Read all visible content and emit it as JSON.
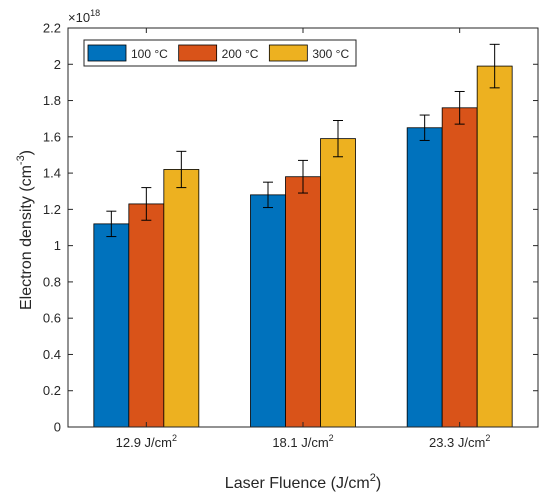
{
  "chart_data": {
    "type": "bar",
    "xlabel": "Laser Fluence (J/cm",
    "xlabel_sup": "2",
    "xlabel_close": ")",
    "ylabel": "Electron density (cm",
    "ylabel_sup": "-3",
    "ylabel_close": ")",
    "y_multiplier_base": "×10",
    "y_multiplier_exp": "18",
    "ylim": [
      0,
      2.2
    ],
    "yticks": [
      "0",
      "0.2",
      "0.4",
      "0.6",
      "0.8",
      "1",
      "1.2",
      "1.4",
      "1.6",
      "1.8",
      "2",
      "2.2"
    ],
    "categories": [
      {
        "label": "12.9 J/cm",
        "sup": "2"
      },
      {
        "label": "18.1 J/cm",
        "sup": "2"
      },
      {
        "label": "23.3 J/cm",
        "sup": "2"
      }
    ],
    "series": [
      {
        "name": "100 °C",
        "color": "#0072BD",
        "values": [
          1.12,
          1.28,
          1.65
        ],
        "errors": [
          0.07,
          0.07,
          0.07
        ]
      },
      {
        "name": "200 °C",
        "color": "#D95319",
        "values": [
          1.23,
          1.38,
          1.76
        ],
        "errors": [
          0.09,
          0.09,
          0.09
        ]
      },
      {
        "name": "300 °C",
        "color": "#EDB120",
        "values": [
          1.42,
          1.59,
          1.99
        ],
        "errors": [
          0.1,
          0.1,
          0.12
        ]
      }
    ],
    "grid": false,
    "legend_position": "top-left",
    "legend_orientation": "horizontal"
  }
}
